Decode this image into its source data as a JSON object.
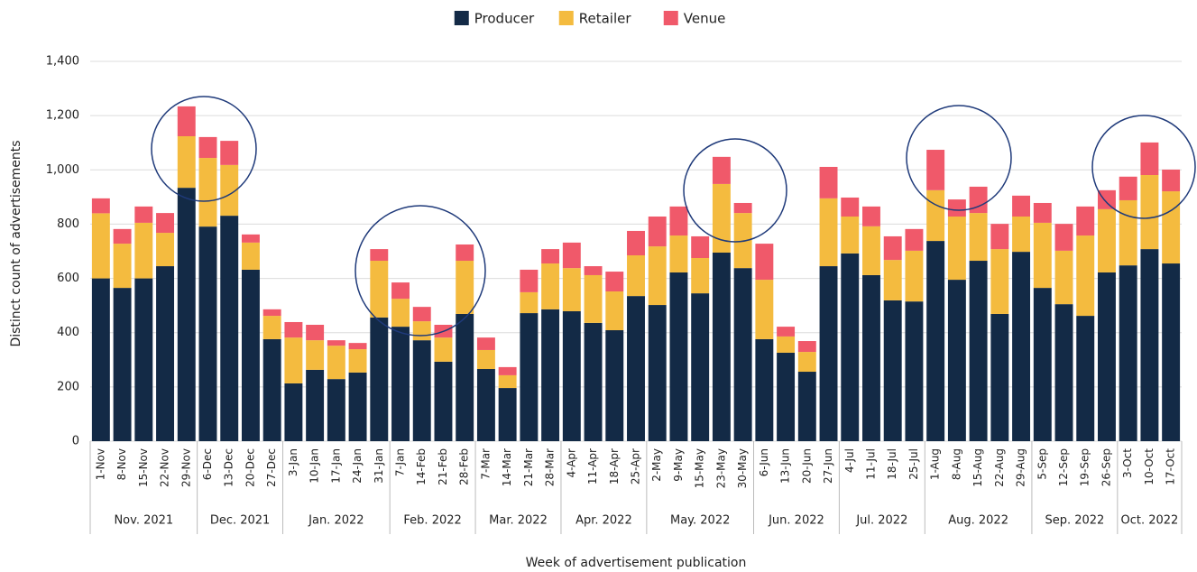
{
  "chart_data": {
    "type": "stacked_bar",
    "x_label": "Week of advertisement publication",
    "y_label": "Distinct count of advertisements",
    "categories": [
      "1-Nov",
      "8-Nov",
      "15-Nov",
      "22-Nov",
      "29-Nov",
      "6-Dec",
      "13-Dec",
      "20-Dec",
      "27-Dec",
      "3-Jan",
      "10-Jan",
      "17-Jan",
      "24-Jan",
      "31-Jan",
      "7-Jan",
      "14-Feb",
      "21-Feb",
      "28-Feb",
      "7-Mar",
      "14-Mar",
      "21-Mar",
      "28-Mar",
      "4-Apr",
      "11-Apr",
      "18-Apr",
      "25-Apr",
      "2-May",
      "9-May",
      "15-May",
      "23-May",
      "30-May",
      "6-Jun",
      "13-Jun",
      "20-Jun",
      "27-Jun",
      "4-Jul",
      "11-Jul",
      "18-Jul",
      "25-Jul",
      "1-Aug",
      "8-Aug",
      "15-Aug",
      "22-Aug",
      "29-Aug",
      "5-Sep",
      "12-Sep",
      "19-Sep",
      "26-Sep",
      "3-Oct",
      "10-Oct",
      "17-Oct"
    ],
    "groups": [
      {
        "label": "Nov. 2021",
        "span": 5
      },
      {
        "label": "Dec. 2021",
        "span": 4
      },
      {
        "label": "Jan. 2022",
        "span": 5
      },
      {
        "label": "Feb. 2022",
        "span": 4
      },
      {
        "label": "Mar. 2022",
        "span": 4
      },
      {
        "label": "Apr. 2022",
        "span": 4
      },
      {
        "label": "May. 2022",
        "span": 5
      },
      {
        "label": "Jun. 2022",
        "span": 4
      },
      {
        "label": "Jul. 2022",
        "span": 4
      },
      {
        "label": "Aug. 2022",
        "span": 5
      },
      {
        "label": "Sep. 2022",
        "span": 4
      },
      {
        "label": "Oct. 2022",
        "span": 3
      }
    ],
    "series": [
      {
        "name": "Producer",
        "color": "#132a46",
        "values": [
          600,
          565,
          600,
          645,
          934,
          791,
          831,
          632,
          376,
          213,
          263,
          229,
          253,
          456,
          422,
          372,
          293,
          469,
          266,
          196,
          472,
          486,
          479,
          436,
          409,
          535,
          502,
          622,
          545,
          695,
          638,
          376,
          326,
          256,
          645,
          692,
          612,
          519,
          515,
          738,
          595,
          665,
          469,
          698,
          565,
          505,
          462,
          622,
          648,
          708,
          655
        ]
      },
      {
        "name": "Retailer",
        "color": "#f4bb3f",
        "values": [
          240,
          163,
          205,
          123,
          190,
          253,
          187,
          100,
          86,
          169,
          109,
          123,
          86,
          209,
          103,
          70,
          89,
          196,
          70,
          47,
          77,
          169,
          159,
          176,
          143,
          150,
          216,
          136,
          130,
          253,
          203,
          219,
          60,
          73,
          250,
          136,
          180,
          149,
          187,
          187,
          233,
          176,
          239,
          130,
          240,
          197,
          296,
          233,
          240,
          273,
          266
        ]
      },
      {
        "name": "Venue",
        "color": "#f0596a",
        "values": [
          55,
          54,
          60,
          73,
          110,
          77,
          89,
          30,
          24,
          57,
          57,
          20,
          23,
          43,
          60,
          53,
          47,
          60,
          46,
          30,
          83,
          53,
          94,
          33,
          73,
          90,
          110,
          107,
          80,
          100,
          37,
          133,
          36,
          40,
          116,
          70,
          73,
          87,
          80,
          149,
          63,
          97,
          93,
          77,
          73,
          99,
          107,
          70,
          87,
          120,
          80
        ]
      }
    ],
    "ylim": [
      0,
      1400
    ],
    "yticks": [
      0,
      200,
      400,
      600,
      800,
      {
        "value": 1000,
        "label": "1,000"
      },
      {
        "value": 1200,
        "label": "1,200"
      },
      {
        "value": 1400,
        "label": "1,400"
      }
    ],
    "grid": true,
    "legend": "top"
  }
}
